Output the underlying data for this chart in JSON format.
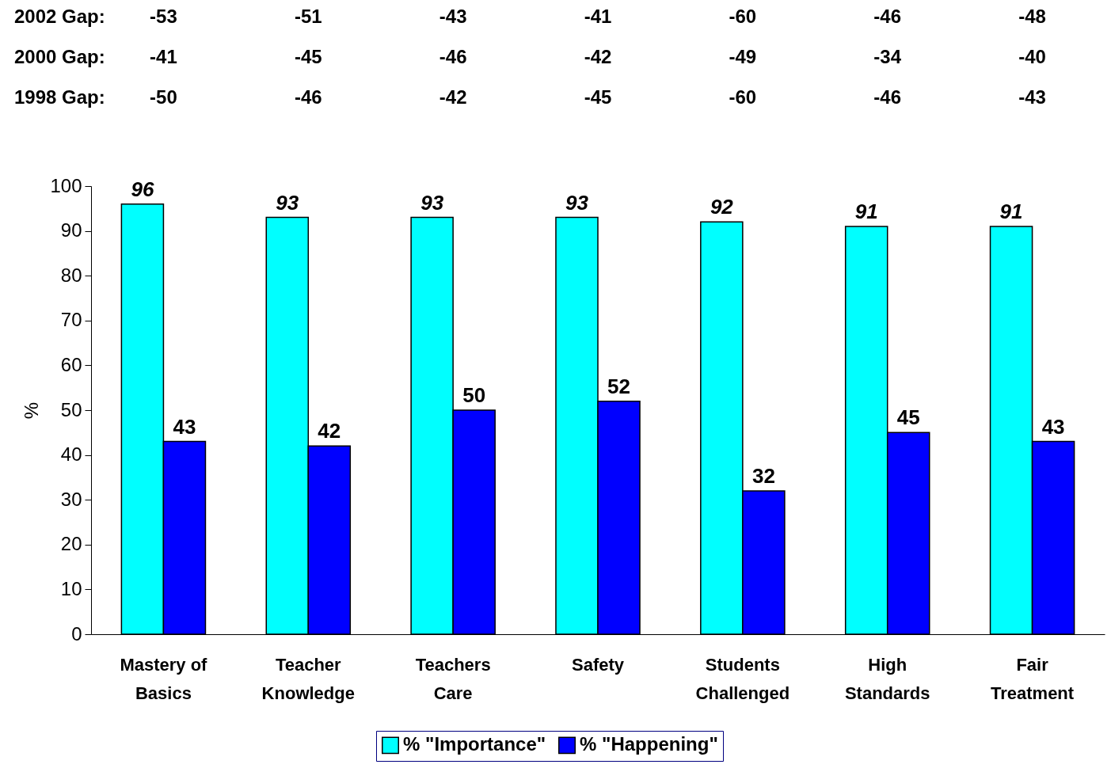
{
  "chart_data": {
    "type": "bar",
    "categories": [
      "Mastery of\nBasics",
      "Teacher\nKnowledge",
      "Teachers\nCare",
      "Safety",
      "Students\nChallenged",
      "High\nStandards",
      "Fair\nTreatment"
    ],
    "series": [
      {
        "name": "% \"Importance\"",
        "color": "#00ffff",
        "values": [
          96,
          93,
          93,
          93,
          92,
          91,
          91
        ]
      },
      {
        "name": "% \"Happening\"",
        "color": "#0000ff",
        "values": [
          43,
          42,
          50,
          52,
          32,
          45,
          43
        ]
      }
    ],
    "ylabel": "%",
    "ylim": [
      0,
      100
    ],
    "yticks": [
      0,
      10,
      20,
      30,
      40,
      50,
      60,
      70,
      80,
      90,
      100
    ],
    "data_labels": true,
    "grid": false,
    "legend": "bottom",
    "annotations": [
      "2002 Gap:",
      "-53",
      "-51",
      "-43",
      "-41",
      "-60",
      "-46",
      "-48",
      "2000 Gap:",
      "-41",
      "-45",
      "-46",
      "-42",
      "-49",
      "-34",
      "-40",
      "1998 Gap:",
      "-50",
      "-46",
      "-42",
      "-45",
      "-60",
      "-46",
      "-43"
    ]
  }
}
